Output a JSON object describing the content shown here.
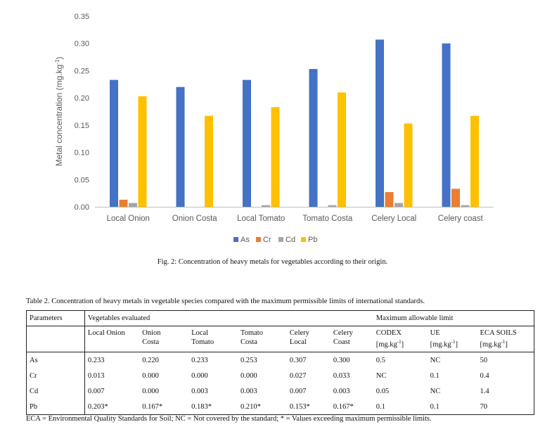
{
  "chart_data": {
    "type": "bar",
    "categories": [
      "Local Onion",
      "Onion Costa",
      "Local Tomato",
      "Tomato Costa",
      "Celery Local",
      "Celery coast"
    ],
    "series": [
      {
        "name": "As",
        "color": "#4472c4",
        "values": [
          0.233,
          0.22,
          0.233,
          0.253,
          0.307,
          0.3
        ]
      },
      {
        "name": "Cr",
        "color": "#ed7d31",
        "values": [
          0.013,
          0.0,
          0.0,
          0.0,
          0.027,
          0.033
        ]
      },
      {
        "name": "Cd",
        "color": "#a5a5a5",
        "values": [
          0.007,
          0.0,
          0.003,
          0.003,
          0.007,
          0.003
        ]
      },
      {
        "name": "Pb",
        "color": "#ffc000",
        "values": [
          0.203,
          0.167,
          0.183,
          0.21,
          0.153,
          0.167
        ]
      }
    ],
    "ylabel": "Metal concentration (mg.kg",
    "ylabel_sup": "-1",
    "ylabel_end": ")",
    "ylim": [
      0,
      0.35
    ],
    "yticks": [
      "0.00",
      "0.05",
      "0.10",
      "0.15",
      "0.20",
      "0.25",
      "0.30",
      "0.35"
    ],
    "legend_position": "bottom",
    "grid": false
  },
  "figure_caption": "Fig. 2: Concentration of heavy metals for vegetables according to their origin.",
  "table": {
    "caption": "Table 2. Concentration of heavy metals in vegetable species compared with the maximum permissible limits of international standards.",
    "header_parameters": "Parameters",
    "header_vegetables": "Vegetables evaluated",
    "header_limit": "Maximum allowable limit",
    "subheaders": [
      {
        "l1": "Local Onion",
        "l2": ""
      },
      {
        "l1": "Onion",
        "l2": "Costa"
      },
      {
        "l1": "Local",
        "l2": "Tomato"
      },
      {
        "l1": "Tomato",
        "l2": "Costa"
      },
      {
        "l1": "Celery",
        "l2": "Local"
      },
      {
        "l1": "Celery",
        "l2": "Coast"
      }
    ],
    "limit_headers": [
      {
        "name": "CODEX",
        "unit": "[mg.kg",
        "sup": "-1",
        "end": "]"
      },
      {
        "name": "UE",
        "unit": "[mg.kg",
        "sup": "-1",
        "end": "]"
      },
      {
        "name": "ECA SOILS",
        "unit": "[mg.kg",
        "sup": "-1",
        "end": "]"
      }
    ],
    "rows": [
      {
        "param": "As",
        "values": [
          "0.233",
          "0.220",
          "0.233",
          "0.253",
          "0.307",
          "0.300"
        ],
        "limits": [
          "0.5",
          "NC",
          "50"
        ]
      },
      {
        "param": "Cr",
        "values": [
          "0.013",
          "0.000",
          "0.000",
          "0.000",
          "0.027",
          "0.033"
        ],
        "limits": [
          "NC",
          "0.1",
          "0.4"
        ]
      },
      {
        "param": "Cd",
        "values": [
          "0.007",
          "0.000",
          "0.003",
          "0.003",
          "0.007",
          "0.003"
        ],
        "limits": [
          "0.05",
          "NC",
          "1.4"
        ]
      },
      {
        "param": "Pb",
        "values": [
          "0.203*",
          "0.167*",
          "0.183*",
          "0.210*",
          "0.153*",
          "0.167*"
        ],
        "limits": [
          "0.1",
          "0.1",
          "70"
        ]
      }
    ],
    "footnote": "ECA = Environmental Quality Standards for Soil; NC = Not covered by the standard; * = Values exceeding maximum permissible limits."
  }
}
